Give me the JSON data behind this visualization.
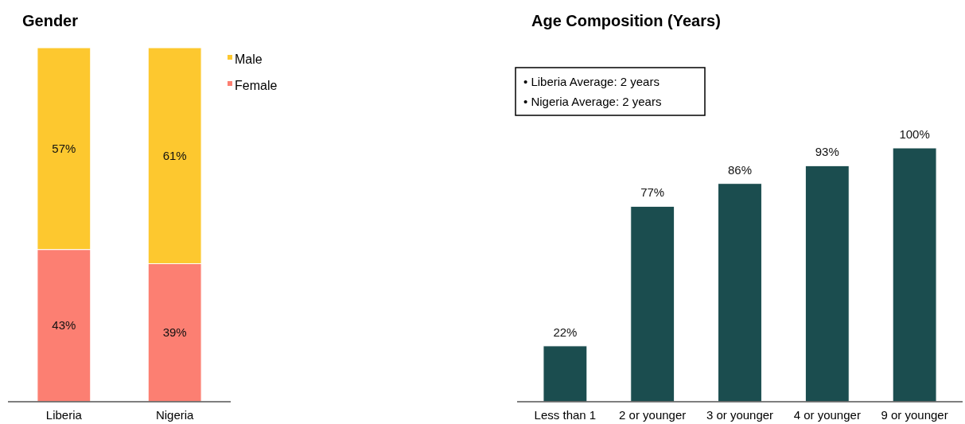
{
  "chart_data": [
    {
      "type": "bar",
      "title": "Gender",
      "categories": [
        "Liberia",
        "Nigeria"
      ],
      "stacked": true,
      "legend": "top right",
      "series": [
        {
          "name": "Female",
          "color": "#fc7f72",
          "values": [
            43,
            39
          ],
          "value_labels": [
            "43%",
            "39%"
          ]
        },
        {
          "name": "Male",
          "color": "#fdc82f",
          "values": [
            57,
            61
          ],
          "value_labels": [
            "57%",
            "61%"
          ]
        }
      ]
    },
    {
      "type": "bar",
      "title": "Age Composition (Years)",
      "categories": [
        "Less than 1",
        "2 or younger",
        "3 or younger",
        "4 or younger",
        "9 or younger"
      ],
      "values": [
        22,
        77,
        86,
        93,
        100
      ],
      "value_labels": [
        "22%",
        "77%",
        "86%",
        "93%",
        "100%"
      ],
      "color": "#1b4d4f",
      "annotations": [
        "• Liberia Average: 2 years",
        "• Nigeria Average: 2 years"
      ]
    }
  ]
}
